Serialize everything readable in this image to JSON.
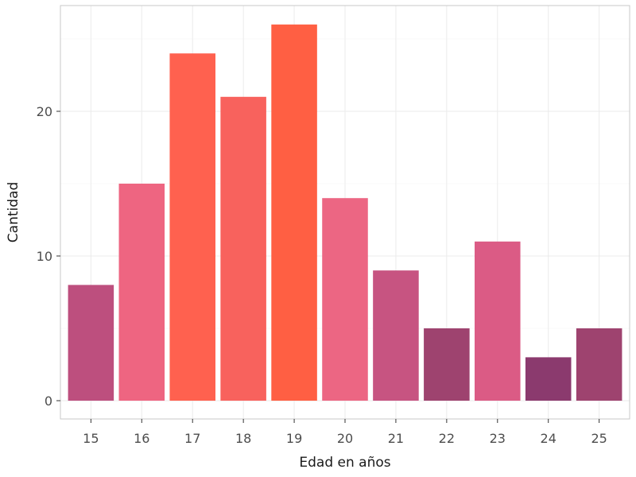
{
  "chart_data": {
    "type": "bar",
    "title": "",
    "xlabel": "Edad en años",
    "ylabel": "Cantidad",
    "categories": [
      "15",
      "16",
      "17",
      "18",
      "19",
      "20",
      "21",
      "22",
      "23",
      "24",
      "25"
    ],
    "values": [
      8,
      15,
      24,
      21,
      26,
      14,
      9,
      5,
      11,
      3,
      5
    ],
    "bar_colors": [
      "#BD4F7E",
      "#EE6581",
      "#FF614F",
      "#F8625D",
      "#FF5F43",
      "#EC6683",
      "#C75481",
      "#9E436F",
      "#DB5B85",
      "#8B3A6E",
      "#9E436F"
    ],
    "ylim": [
      0,
      26
    ],
    "yticks": [
      0,
      10,
      20
    ],
    "grid": true,
    "legend": "none"
  }
}
